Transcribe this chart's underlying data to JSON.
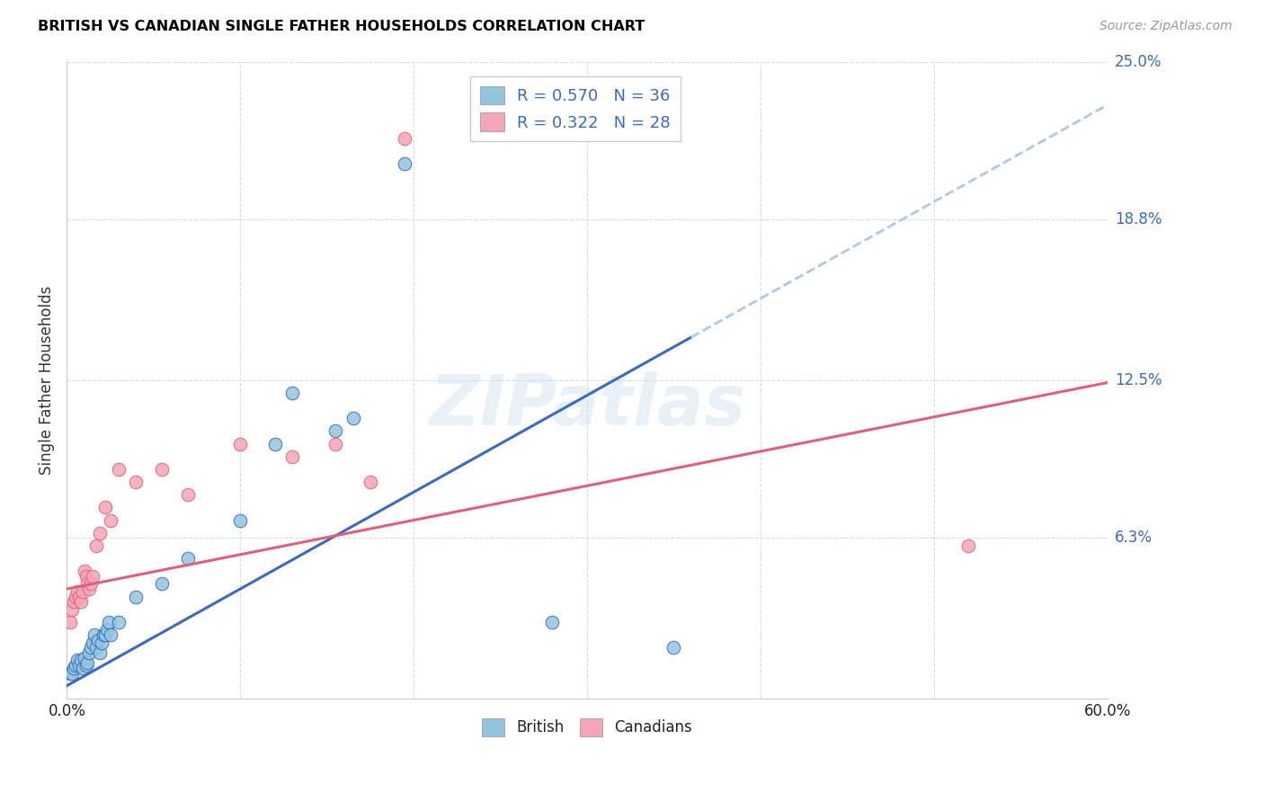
{
  "title": "BRITISH VS CANADIAN SINGLE FATHER HOUSEHOLDS CORRELATION CHART",
  "source": "Source: ZipAtlas.com",
  "ylabel": "Single Father Households",
  "watermark": "ZIPatlas",
  "british_R": 0.57,
  "british_N": 36,
  "canadian_R": 0.322,
  "canadian_N": 28,
  "xlim": [
    0.0,
    0.6
  ],
  "ylim": [
    0.0,
    0.25
  ],
  "british_color": "#92c5de",
  "canadian_color": "#f4a6b8",
  "british_line_color": "#3a6bbf",
  "canadian_line_color": "#e0607a",
  "trend_ext_color": "#aec8e8",
  "british_x": [
    0.002,
    0.003,
    0.004,
    0.005,
    0.006,
    0.007,
    0.008,
    0.009,
    0.01,
    0.011,
    0.012,
    0.013,
    0.014,
    0.015,
    0.016,
    0.017,
    0.018,
    0.019,
    0.02,
    0.021,
    0.022,
    0.023,
    0.024,
    0.025,
    0.03,
    0.04,
    0.055,
    0.07,
    0.1,
    0.12,
    0.13,
    0.155,
    0.165,
    0.195,
    0.28,
    0.35
  ],
  "british_y": [
    0.01,
    0.01,
    0.012,
    0.013,
    0.015,
    0.013,
    0.015,
    0.012,
    0.016,
    0.013,
    0.014,
    0.018,
    0.02,
    0.022,
    0.025,
    0.02,
    0.023,
    0.018,
    0.022,
    0.025,
    0.025,
    0.027,
    0.03,
    0.025,
    0.03,
    0.04,
    0.045,
    0.055,
    0.07,
    0.1,
    0.12,
    0.105,
    0.11,
    0.21,
    0.03,
    0.02
  ],
  "canadian_x": [
    0.002,
    0.003,
    0.004,
    0.005,
    0.006,
    0.007,
    0.008,
    0.009,
    0.01,
    0.011,
    0.012,
    0.013,
    0.014,
    0.015,
    0.017,
    0.019,
    0.022,
    0.025,
    0.03,
    0.04,
    0.055,
    0.07,
    0.1,
    0.13,
    0.155,
    0.175,
    0.195,
    0.52
  ],
  "canadian_y": [
    0.03,
    0.035,
    0.038,
    0.04,
    0.042,
    0.04,
    0.038,
    0.042,
    0.05,
    0.048,
    0.045,
    0.043,
    0.045,
    0.048,
    0.06,
    0.065,
    0.075,
    0.07,
    0.09,
    0.085,
    0.09,
    0.08,
    0.1,
    0.095,
    0.1,
    0.085,
    0.22,
    0.06
  ],
  "brit_line_x0": 0.0,
  "brit_line_x_solid_end": 0.36,
  "brit_line_x_dash_end": 0.6,
  "brit_line_y0": 0.005,
  "brit_line_slope": 0.38,
  "can_line_x0": 0.0,
  "can_line_x_end": 0.6,
  "can_line_y0": 0.043,
  "can_line_slope": 0.135
}
